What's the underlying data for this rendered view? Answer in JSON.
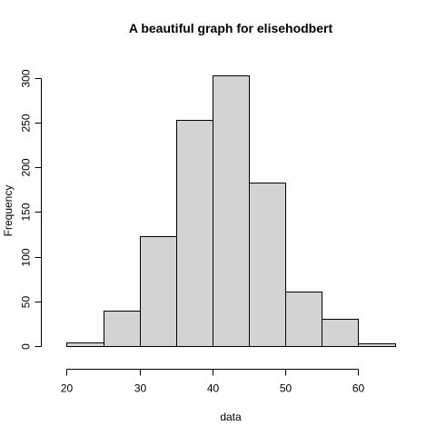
{
  "chart_data": {
    "type": "bar",
    "subtype": "histogram",
    "title": "A beautiful graph for elisehodbert",
    "xlabel": "data",
    "ylabel": "Frequency",
    "bin_edges": [
      20,
      25,
      30,
      35,
      40,
      45,
      50,
      55,
      60,
      65
    ],
    "values": [
      4,
      40,
      123,
      253,
      303,
      183,
      61,
      31,
      3
    ],
    "xlim": [
      20,
      65
    ],
    "ylim": [
      0,
      303
    ],
    "x_ticks": [
      20,
      30,
      40,
      50,
      60
    ],
    "y_ticks": [
      0,
      50,
      100,
      150,
      200,
      250,
      300
    ],
    "grid": false,
    "legend": "none",
    "bar_color": "#d3d3d3",
    "border_color": "#000000"
  }
}
